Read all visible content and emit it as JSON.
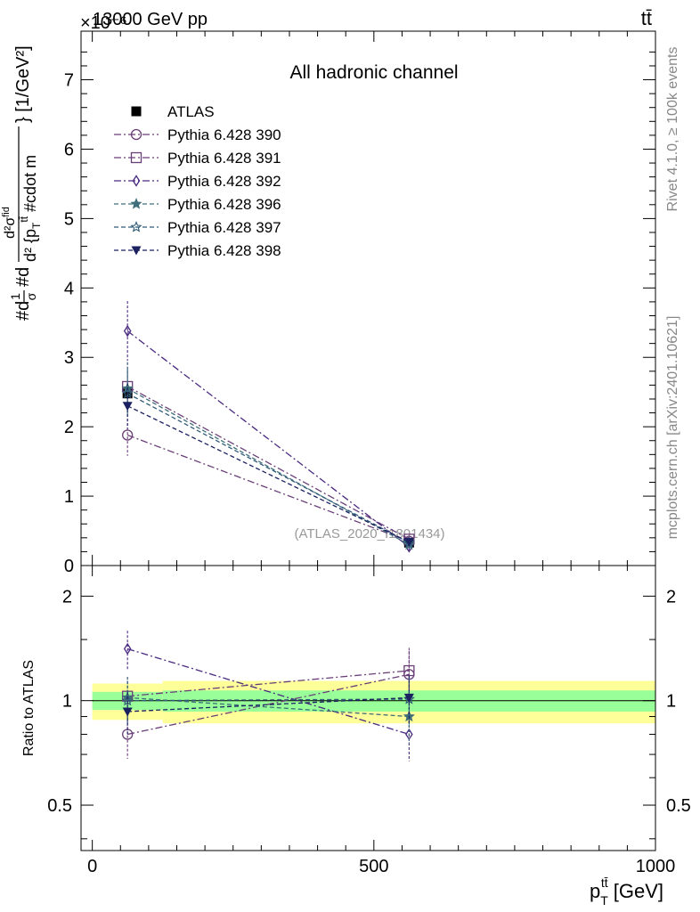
{
  "header": {
    "energy_label": "13000 GeV pp",
    "process_label": "tt̄",
    "exponent_label": "×10⁻⁶"
  },
  "side_labels": {
    "rivet": "Rivet 4.1.0, ≥ 100k events",
    "mcplots": "mcplots.cern.ch [arXiv:2401.10621]"
  },
  "chart_data": [
    {
      "type": "line",
      "panel": "main",
      "title": "All hadronic channel",
      "watermark": "(ATLAS_2020_I1801434)",
      "ylabel": "#d\\frac{1}{\\sigma}#d\\frac{d^2\\sigma^{fid}}{d^2 {p_T^{tt̄} #cdot m^{tt̄}}} [1/GeV²]",
      "ylabel_parts": {
        "lead": "#d",
        "one": "1",
        "sigma": "σ",
        "mid": "#d",
        "num": "d²σ",
        "fid": "fid",
        "den": "d² {p",
        "T": "T",
        "tt": "tt̄",
        "cdot": " #cdot m",
        "unit": "} [1/GeV²]"
      },
      "yscale_exponent": -6,
      "xlim": [
        -20,
        1000
      ],
      "ylim": [
        0,
        7.7
      ],
      "yticks": [
        0,
        1,
        2,
        3,
        4,
        5,
        6,
        7
      ],
      "xticks": [
        0,
        500,
        1000
      ],
      "legend_position": "top-left",
      "x": [
        62.5,
        562.5
      ],
      "series": [
        {
          "name": "ATLAS",
          "marker": "filled-square",
          "color": "#000000",
          "values": [
            2.48,
            0.33
          ],
          "errors": [
            0.0,
            0.0
          ]
        },
        {
          "name": "Pythia 6.428 390",
          "marker": "open-circle",
          "color": "#6a3f78",
          "dash": "dashdot",
          "values": [
            1.88,
            0.35
          ],
          "errors": [
            0.3,
            0.05
          ]
        },
        {
          "name": "Pythia 6.428 391",
          "marker": "open-square",
          "color": "#6a3f78",
          "dash": "dashdot",
          "values": [
            2.58,
            0.38
          ],
          "errors": [
            0.35,
            0.05
          ]
        },
        {
          "name": "Pythia 6.428 392",
          "marker": "open-diamond",
          "color": "#4a2a80",
          "dash": "dashdot",
          "values": [
            3.38,
            0.27
          ],
          "errors": [
            0.43,
            0.05
          ]
        },
        {
          "name": "Pythia 6.428 396",
          "marker": "filled-star",
          "color": "#3f6e7a",
          "dash": "dashed",
          "values": [
            2.55,
            0.3
          ],
          "errors": [
            0.38,
            0.05
          ]
        },
        {
          "name": "Pythia 6.428 397",
          "marker": "open-star",
          "color": "#2f5a78",
          "dash": "dashed",
          "values": [
            2.48,
            0.33
          ],
          "errors": [
            0.35,
            0.05
          ]
        },
        {
          "name": "Pythia 6.428 398",
          "marker": "filled-triangle-down",
          "color": "#1a2060",
          "dash": "dashed",
          "values": [
            2.3,
            0.34
          ],
          "errors": [
            0.33,
            0.05
          ]
        }
      ]
    },
    {
      "type": "line",
      "panel": "ratio",
      "ylabel": "Ratio to ATLAS",
      "xlabel_base": "p",
      "xlabel_sub": "T",
      "xlabel_sup": "tt̄",
      "xlabel_unit": " [GeV]",
      "xlim": [
        -20,
        1000
      ],
      "ylim": [
        0.37,
        2.45
      ],
      "yticks": [
        0.5,
        1,
        2
      ],
      "ytick_labels": [
        "0.5",
        "1",
        "2"
      ],
      "xticks": [
        0,
        500,
        1000
      ],
      "xtick_labels": [
        "0",
        "500",
        "1000"
      ],
      "x": [
        62.5,
        562.5
      ],
      "bands": {
        "edges": [
          0,
          125,
          1000
        ],
        "inner": [
          [
            0.94,
            1.06
          ],
          [
            0.93,
            1.07
          ]
        ],
        "outer": [
          [
            0.88,
            1.12
          ],
          [
            0.86,
            1.14
          ]
        ],
        "inner_color": "#99ff99",
        "outer_color": "#ffff99"
      },
      "series": [
        {
          "name": "Pythia 6.428 390",
          "marker": "open-circle",
          "color": "#6a3f78",
          "dash": "dashdot",
          "values": [
            0.8,
            1.19
          ],
          "errors": [
            0.12,
            0.2
          ]
        },
        {
          "name": "Pythia 6.428 391",
          "marker": "open-square",
          "color": "#6a3f78",
          "dash": "dashdot",
          "values": [
            1.03,
            1.22
          ],
          "errors": [
            0.14,
            0.2
          ]
        },
        {
          "name": "Pythia 6.428 392",
          "marker": "open-diamond",
          "color": "#4a2a80",
          "dash": "dashdot",
          "values": [
            1.41,
            0.8
          ],
          "errors": [
            0.18,
            0.13
          ]
        },
        {
          "name": "Pythia 6.428 396",
          "marker": "filled-star",
          "color": "#3f6e7a",
          "dash": "dashed",
          "values": [
            1.02,
            0.9
          ],
          "errors": [
            0.15,
            0.15
          ]
        },
        {
          "name": "Pythia 6.428 397",
          "marker": "open-star",
          "color": "#2f5a78",
          "dash": "dashed",
          "values": [
            1.0,
            1.01
          ],
          "errors": [
            0.14,
            0.16
          ]
        },
        {
          "name": "Pythia 6.428 398",
          "marker": "filled-triangle-down",
          "color": "#1a2060",
          "dash": "dashed",
          "values": [
            0.93,
            1.02
          ],
          "errors": [
            0.13,
            0.16
          ]
        }
      ]
    }
  ]
}
